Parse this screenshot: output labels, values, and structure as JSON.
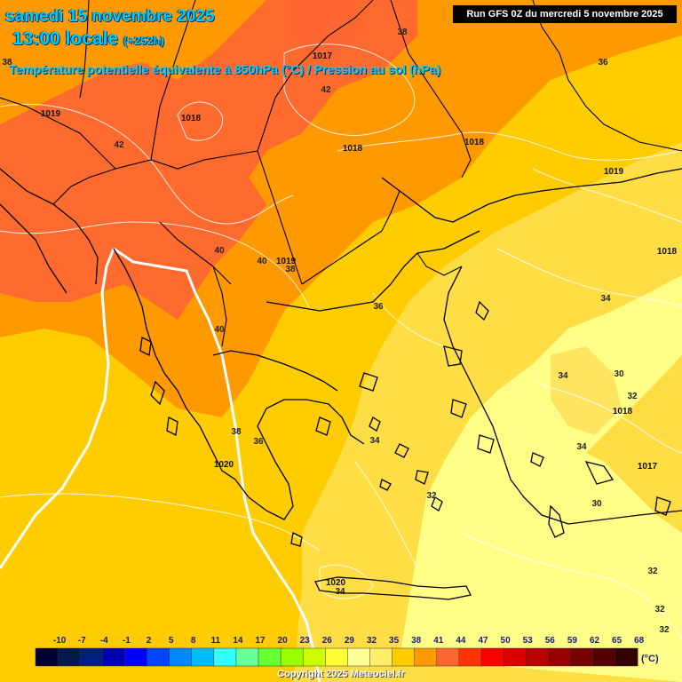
{
  "header": {
    "date_line": "samedi 15 novembre 2025",
    "time_local": "13:00 locale",
    "lead_time": "(+252h)",
    "subtitle": "Température potentielle équivalente à 850hPa (°C) / Pression au sol (hPa)",
    "run_info": "Run GFS 0Z du mercredi 5 novembre 2025"
  },
  "footer": {
    "copyright": "Copyright 2025 Meteociel.fr",
    "unit": "(°C)"
  },
  "legend": [
    {
      "value": "-10",
      "color": "#000033"
    },
    {
      "value": "-7",
      "color": "#001a4d"
    },
    {
      "value": "-4",
      "color": "#002080"
    },
    {
      "value": "-1",
      "color": "#0000b3"
    },
    {
      "value": "2",
      "color": "#0000ff"
    },
    {
      "value": "5",
      "color": "#0044ff"
    },
    {
      "value": "8",
      "color": "#0088ff"
    },
    {
      "value": "11",
      "color": "#00bbff"
    },
    {
      "value": "14",
      "color": "#33ffff"
    },
    {
      "value": "17",
      "color": "#66ff99"
    },
    {
      "value": "20",
      "color": "#66ff33"
    },
    {
      "value": "23",
      "color": "#99ff00"
    },
    {
      "value": "26",
      "color": "#ccff00"
    },
    {
      "value": "29",
      "color": "#ffff33"
    },
    {
      "value": "32",
      "color": "#ffff99"
    },
    {
      "value": "35",
      "color": "#ffee66"
    },
    {
      "value": "38",
      "color": "#ffcc00"
    },
    {
      "value": "41",
      "color": "#ff9900"
    },
    {
      "value": "44",
      "color": "#ff6633"
    },
    {
      "value": "47",
      "color": "#ff3300"
    },
    {
      "value": "50",
      "color": "#ff0000"
    },
    {
      "value": "53",
      "color": "#dd0000"
    },
    {
      "value": "56",
      "color": "#bb0000"
    },
    {
      "value": "59",
      "color": "#990000"
    },
    {
      "value": "62",
      "color": "#770000"
    },
    {
      "value": "65",
      "color": "#550000"
    },
    {
      "value": "68",
      "color": "#330000"
    }
  ],
  "map_labels": {
    "temperature": [
      {
        "text": "38"
      },
      {
        "text": "38"
      },
      {
        "text": "42"
      },
      {
        "text": "42"
      },
      {
        "text": "36"
      },
      {
        "text": "40"
      },
      {
        "text": "40"
      },
      {
        "text": "38"
      },
      {
        "text": "36"
      },
      {
        "text": "34"
      },
      {
        "text": "40"
      },
      {
        "text": "38"
      },
      {
        "text": "36"
      },
      {
        "text": "34"
      },
      {
        "text": "30"
      },
      {
        "text": "34"
      },
      {
        "text": "32"
      },
      {
        "text": "34"
      },
      {
        "text": "32"
      },
      {
        "text": "30"
      },
      {
        "text": "34"
      },
      {
        "text": "32"
      },
      {
        "text": "32"
      },
      {
        "text": "32"
      }
    ],
    "pressure": [
      {
        "text": "1019"
      },
      {
        "text": "1018"
      },
      {
        "text": "1017"
      },
      {
        "text": "1018"
      },
      {
        "text": "1018"
      },
      {
        "text": "1019"
      },
      {
        "text": "1018"
      },
      {
        "text": "1019"
      },
      {
        "text": "1018"
      },
      {
        "text": "1017"
      },
      {
        "text": "1020"
      },
      {
        "text": "1020"
      }
    ]
  }
}
